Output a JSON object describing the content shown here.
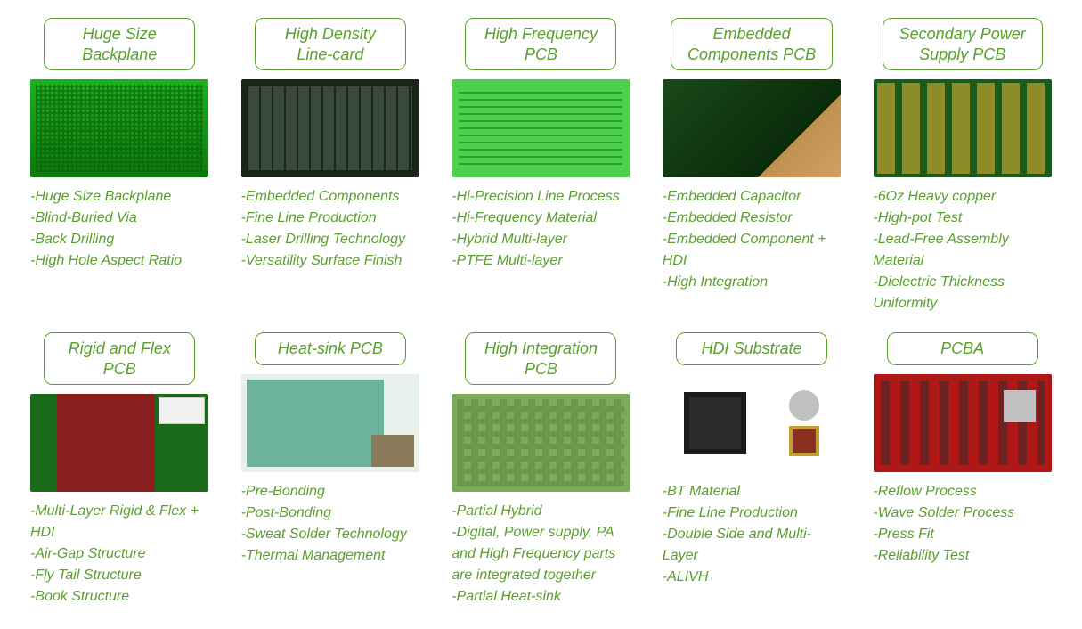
{
  "cards": [
    {
      "title": "Huge Size\nBackplane",
      "imgClass": "pcb-green-grid",
      "features": [
        "-Huge Size Backplane",
        "-Blind-Buried Via",
        "-Back Drilling",
        "-High Hole Aspect Ratio"
      ]
    },
    {
      "title": "High Density\nLine-card",
      "imgClass": "pcb-dark",
      "features": [
        "-Embedded Components",
        "-Fine Line Production",
        "-Laser Drilling Technology",
        "-Versatility Surface Finish"
      ]
    },
    {
      "title": "High Frequency\nPCB",
      "imgClass": "pcb-light-green",
      "features": [
        "-Hi-Precision Line Process",
        "-Hi-Frequency Material",
        "-Hybrid Multi-layer",
        "-PTFE Multi-layer"
      ]
    },
    {
      "title": "Embedded\nComponents PCB",
      "imgClass": "pcb-embedded",
      "features": [
        "-Embedded Capacitor",
        "-Embedded Resistor",
        "-Embedded Component + HDI",
        "-High Integration"
      ]
    },
    {
      "title": "Secondary Power\nSupply PCB",
      "imgClass": "pcb-secondary",
      "features": [
        "-6Oz Heavy copper",
        "-High-pot Test",
        "-Lead-Free Assembly Material",
        "-Dielectric Thickness Uniformity"
      ]
    },
    {
      "title": "Rigid and Flex\nPCB",
      "imgClass": "pcb-rigid-flex",
      "features": [
        "-Multi-Layer Rigid & Flex + HDI",
        "-Air-Gap Structure",
        "-Fly Tail Structure",
        "-Book Structure"
      ]
    },
    {
      "title": "Heat-sink PCB",
      "imgClass": "pcb-heatsink",
      "features": [
        "-Pre-Bonding",
        "-Post-Bonding",
        "-Sweat Solder Technology",
        "-Thermal Management"
      ]
    },
    {
      "title": "High Integration\nPCB",
      "imgClass": "pcb-integration",
      "features": [
        "-Partial Hybrid",
        "-Digital, Power supply, PA and  High Frequency parts are integrated together",
        "-Partial Heat-sink"
      ]
    },
    {
      "title": "HDI Substrate",
      "imgClass": "pcb-hdi",
      "features": [
        "-BT Material",
        "-Fine Line Production",
        "-Double Side and Multi-Layer",
        "-ALIVH"
      ]
    },
    {
      "title": "PCBA",
      "imgClass": "pcb-pcba",
      "features": [
        "-Reflow Process",
        "-Wave Solder Process",
        "-Press Fit",
        "-Reliability Test"
      ]
    }
  ],
  "colors": {
    "accent": "#5aa02c",
    "background": "#ffffff"
  }
}
